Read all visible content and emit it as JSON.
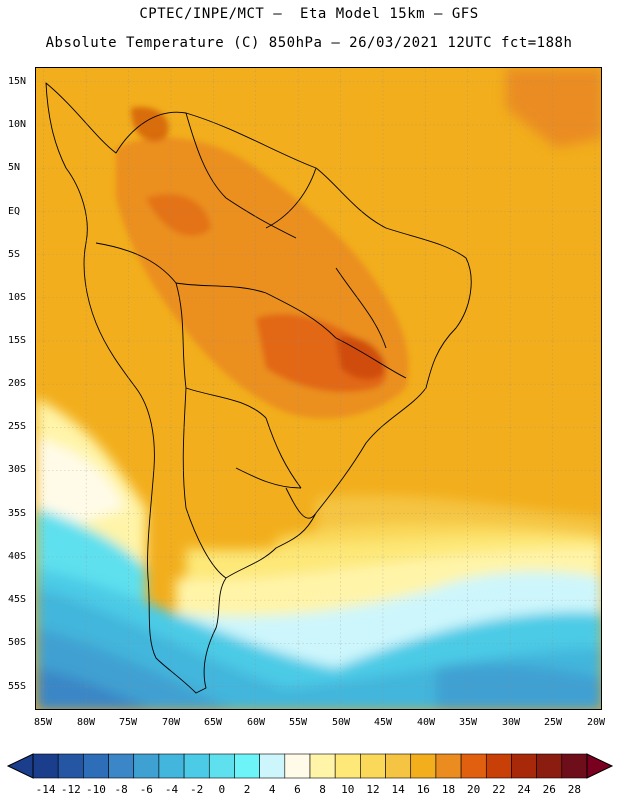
{
  "header": {
    "title_line1": "CPTEC/INPE/MCT –  Eta Model 15km – GFS",
    "title_line2": "Absolute Temperature (C) 850hPa – 26/03/2021 12UTC fct=188h"
  },
  "map": {
    "lat_labels": [
      "15N",
      "10N",
      "5N",
      "EQ",
      "5S",
      "10S",
      "15S",
      "20S",
      "25S",
      "30S",
      "35S",
      "40S",
      "45S",
      "50S",
      "55S"
    ],
    "lon_labels": [
      "85W",
      "80W",
      "75W",
      "70W",
      "65W",
      "60W",
      "55W",
      "50W",
      "45W",
      "40W",
      "35W",
      "30W",
      "25W",
      "20W"
    ]
  },
  "colorbar": {
    "labels": [
      "-14",
      "-12",
      "-10",
      "-8",
      "-6",
      "-4",
      "-2",
      "0",
      "2",
      "4",
      "6",
      "8",
      "10",
      "12",
      "14",
      "16",
      "18",
      "20",
      "22",
      "24",
      "26",
      "28"
    ],
    "colors": [
      "#1a3e8c",
      "#2456a4",
      "#2e6eb8",
      "#3a86c6",
      "#3fa0d2",
      "#42b6dc",
      "#4ccbe6",
      "#5ee0ee",
      "#6cf4f8",
      "#cdf6fc",
      "#fffbe8",
      "#fff4a8",
      "#fde878",
      "#fad85a",
      "#f5c443",
      "#f2ae1c",
      "#ea8c20",
      "#e06010",
      "#c84008",
      "#a8280a",
      "#8a1c10",
      "#6e0e1a"
    ]
  }
}
